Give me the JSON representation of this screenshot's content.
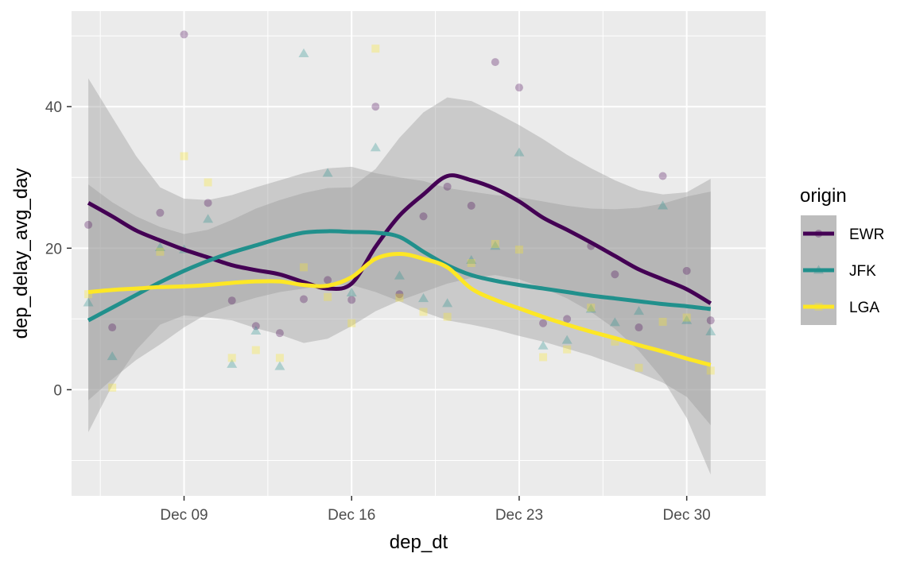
{
  "chart_data": {
    "type": "scatter",
    "xlabel": "dep_dt",
    "ylabel": "dep_delay_avg_day",
    "x_ticks": [
      "Dec 09",
      "Dec 16",
      "Dec 23",
      "Dec 30"
    ],
    "x_tick_days": [
      9,
      16,
      23,
      30
    ],
    "y_ticks": [
      0,
      20,
      40
    ],
    "xlim": [
      4.3,
      33.3
    ],
    "ylim": [
      -15,
      53.5
    ],
    "grid": true,
    "legend": {
      "title": "origin",
      "placement": "right",
      "entries": [
        "EWR",
        "JFK",
        "LGA"
      ]
    },
    "series": [
      {
        "name": "EWR",
        "color": "#440154",
        "marker": "circle",
        "points_x": [
          5,
          6,
          8,
          9,
          10,
          11,
          12,
          13,
          14,
          15,
          16,
          17,
          18,
          19,
          20,
          21,
          22,
          23,
          24,
          25,
          26,
          27,
          28,
          29,
          30,
          31
        ],
        "points_y": [
          23.3,
          8.8,
          25.0,
          50.2,
          26.4,
          12.6,
          9.0,
          8.0,
          12.8,
          15.5,
          12.7,
          40.0,
          13.5,
          24.5,
          28.7,
          26.0,
          46.3,
          42.7,
          9.4,
          10.0,
          20.3,
          16.3,
          8.8,
          30.2,
          16.8,
          9.8
        ],
        "smooth_x": [
          5,
          6,
          7,
          8,
          9,
          10,
          11,
          12,
          13,
          14,
          15,
          16,
          17,
          18,
          19,
          20,
          21,
          22,
          23,
          24,
          25,
          26,
          27,
          28,
          29,
          30,
          31
        ],
        "smooth_y": [
          26.4,
          24.5,
          22.5,
          21.1,
          19.8,
          18.7,
          17.6,
          16.9,
          16.3,
          15.2,
          14.3,
          15.0,
          20.2,
          24.6,
          27.6,
          30.2,
          29.6,
          28.4,
          26.6,
          24.3,
          22.6,
          20.8,
          18.9,
          17.0,
          15.6,
          14.2,
          12.2
        ],
        "ribbon_upper": [
          29.0,
          26.5,
          24.5,
          23.0,
          22.0,
          22.6,
          24.0,
          25.6,
          26.8,
          27.8,
          28.5,
          28.6,
          31.2,
          35.6,
          39.2,
          41.3,
          40.8,
          39.2,
          37.4,
          35.4,
          33.2,
          31.3,
          29.6,
          28.2,
          27.6,
          27.9,
          29.8
        ],
        "ribbon_lower": [
          -6.0,
          0.6,
          5.6,
          9.2,
          10.5,
          10.2,
          9.8,
          8.7,
          7.8,
          6.6,
          7.2,
          9.0,
          11.1,
          12.6,
          13.8,
          15.0,
          15.8,
          16.2,
          15.6,
          14.4,
          12.9,
          11.0,
          8.6,
          5.5,
          1.5,
          -4.0,
          -12.0
        ]
      },
      {
        "name": "JFK",
        "color": "#21908C",
        "marker": "triangle",
        "points_x": [
          5,
          6,
          8,
          9,
          10,
          11,
          12,
          13,
          14,
          15,
          16,
          17,
          18,
          19,
          20,
          21,
          22,
          23,
          24,
          25,
          26,
          27,
          28,
          29,
          30,
          31
        ],
        "points_y": [
          12.3,
          4.7,
          20.1,
          19.8,
          24.1,
          3.6,
          8.3,
          3.3,
          47.5,
          30.6,
          13.7,
          34.2,
          16.1,
          12.9,
          12.2,
          18.3,
          20.3,
          33.5,
          6.2,
          7.0,
          11.4,
          9.5,
          11.1,
          26.0,
          9.8,
          8.2
        ],
        "smooth_x": [
          5,
          6,
          7,
          8,
          9,
          10,
          11,
          12,
          13,
          14,
          15,
          16,
          17,
          18,
          19,
          20,
          21,
          22,
          23,
          24,
          25,
          26,
          27,
          28,
          29,
          30,
          31
        ],
        "smooth_y": [
          9.8,
          11.6,
          13.4,
          15.2,
          16.8,
          18.2,
          19.4,
          20.4,
          21.4,
          22.2,
          22.4,
          22.3,
          22.2,
          21.6,
          19.5,
          17.6,
          16.2,
          15.4,
          14.8,
          14.3,
          13.8,
          13.3,
          12.9,
          12.5,
          12.1,
          11.8,
          11.4
        ],
        "ribbon_upper": [
          44.0,
          38.5,
          33.0,
          28.6,
          27.0,
          26.8,
          27.5,
          28.6,
          29.6,
          30.6,
          31.3,
          31.5,
          30.6,
          30.0,
          29.5,
          28.5,
          28.0,
          27.5,
          27.2,
          26.6,
          26.0,
          25.6,
          25.5,
          25.7,
          26.3,
          27.3,
          28.0
        ],
        "ribbon_lower": [
          -1.5,
          1.5,
          4.2,
          6.4,
          8.8,
          10.8,
          12.0,
          13.0,
          13.8,
          14.3,
          14.8,
          14.8,
          13.8,
          12.5,
          11.0,
          9.8,
          9.2,
          8.5,
          7.6,
          6.8,
          5.8,
          4.8,
          3.6,
          2.4,
          1.0,
          -1.0,
          -5.0
        ]
      },
      {
        "name": "LGA",
        "color": "#FDE725",
        "marker": "square",
        "points_x": [
          5,
          6,
          8,
          9,
          10,
          11,
          12,
          13,
          14,
          15,
          16,
          17,
          18,
          19,
          20,
          21,
          22,
          23,
          24,
          25,
          26,
          27,
          28,
          29,
          30,
          31
        ],
        "points_y": [
          13.5,
          0.3,
          19.5,
          33.0,
          29.3,
          4.5,
          5.6,
          4.5,
          17.3,
          13.1,
          9.4,
          48.2,
          13.0,
          11.0,
          10.3,
          17.9,
          20.6,
          19.8,
          4.6,
          5.7,
          11.6,
          6.8,
          3.1,
          9.6,
          10.2,
          2.7
        ],
        "smooth_x": [
          5,
          6,
          7,
          8,
          9,
          10,
          11,
          12,
          13,
          14,
          15,
          16,
          17,
          18,
          19,
          20,
          21,
          22,
          23,
          24,
          25,
          26,
          27,
          28,
          29,
          30,
          31
        ],
        "smooth_y": [
          13.8,
          14.1,
          14.3,
          14.5,
          14.6,
          14.8,
          15.1,
          15.3,
          15.3,
          14.8,
          14.7,
          15.9,
          18.5,
          19.2,
          18.5,
          17.3,
          14.3,
          12.7,
          11.5,
          10.3,
          9.2,
          8.2,
          7.3,
          6.3,
          5.4,
          4.4,
          3.5
        ]
      }
    ]
  }
}
